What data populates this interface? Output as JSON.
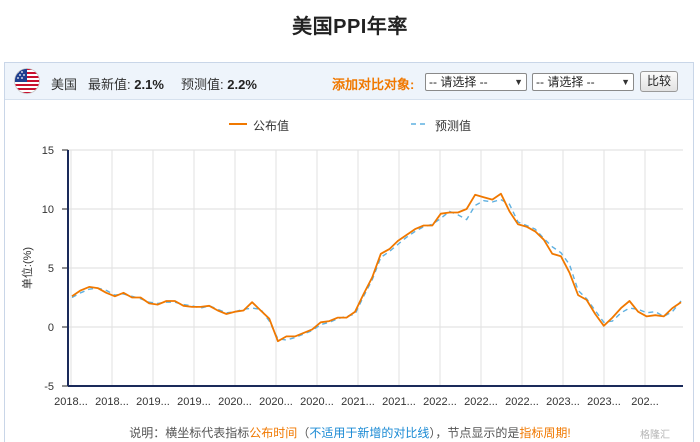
{
  "page": {
    "title": "美国PPI年率"
  },
  "toolbar": {
    "country": "美国",
    "latest_label": "最新值:",
    "latest_value": "2.1%",
    "forecast_label": "预测值:",
    "forecast_value": "2.2%",
    "compare_label": "添加对比对象:",
    "select1": "-- 请选择 --",
    "select2": "-- 请选择 --",
    "compare_button": "比较"
  },
  "footer": {
    "prefix": "说明：横坐标代表指标",
    "publish_time": "公布时间",
    "paren_open": "（",
    "not_applicable": "不适用于新增的对比线",
    "paren_close": "）",
    "suffix": "，节点显示的是",
    "period": "指标周期!"
  },
  "watermark": "格隆汇",
  "colors": {
    "actual": "#f07800",
    "forecast": "#5fb0e0",
    "accent": "#f07800",
    "link": "#1a8ad4"
  },
  "chart_data": {
    "type": "line",
    "ylabel": "单位:(%)",
    "ylim": [
      -5,
      15
    ],
    "yticks": [
      "15",
      "10",
      "5",
      "0",
      "-5"
    ],
    "grid": true,
    "legend_position": "top-center",
    "xtick_labels": [
      "2018...",
      "2018...",
      "2019...",
      "2019...",
      "2020...",
      "2020...",
      "2020...",
      "2021...",
      "2021...",
      "2022...",
      "2022...",
      "2022...",
      "2023...",
      "2023...",
      "202..."
    ],
    "series": [
      {
        "name": "公布值",
        "values": [
          2.6,
          3.1,
          3.4,
          3.3,
          2.9,
          2.6,
          2.9,
          2.5,
          2.5,
          2.0,
          1.9,
          2.2,
          2.2,
          1.8,
          1.7,
          1.7,
          1.8,
          1.4,
          1.1,
          1.3,
          1.4,
          2.1,
          1.4,
          0.7,
          -1.2,
          -0.8,
          -0.8,
          -0.5,
          -0.2,
          0.4,
          0.5,
          0.8,
          0.8,
          1.3,
          2.8,
          4.2,
          6.2,
          6.6,
          7.3,
          7.8,
          8.3,
          8.6,
          8.6,
          9.6,
          9.7,
          9.7,
          10.0,
          11.2,
          11.0,
          10.8,
          11.3,
          9.8,
          8.7,
          8.5,
          8.1,
          7.4,
          6.2,
          6.0,
          4.6,
          2.7,
          2.3,
          1.1,
          0.1,
          0.8,
          1.6,
          2.2,
          1.3,
          0.9,
          1.0,
          0.9,
          1.6,
          2.1
        ]
      },
      {
        "name": "预测值",
        "values": [
          2.5,
          2.9,
          3.2,
          3.3,
          3.1,
          2.7,
          2.8,
          2.6,
          2.4,
          2.1,
          2.0,
          2.1,
          2.1,
          1.9,
          1.8,
          1.6,
          1.8,
          1.5,
          1.2,
          1.3,
          1.5,
          1.6,
          1.5,
          0.5,
          -1.0,
          -1.1,
          -0.9,
          -0.6,
          -0.3,
          0.2,
          0.4,
          0.7,
          0.9,
          1.1,
          2.6,
          4.0,
          5.9,
          6.4,
          7.0,
          7.6,
          8.1,
          8.5,
          8.7,
          9.2,
          9.8,
          9.5,
          9.1,
          10.3,
          10.7,
          10.6,
          10.8,
          10.4,
          8.9,
          8.6,
          8.3,
          7.5,
          6.8,
          6.3,
          5.3,
          3.1,
          2.4,
          1.4,
          0.4,
          0.5,
          1.2,
          1.6,
          1.5,
          1.2,
          1.3,
          0.9,
          1.3,
          2.2
        ]
      }
    ]
  }
}
